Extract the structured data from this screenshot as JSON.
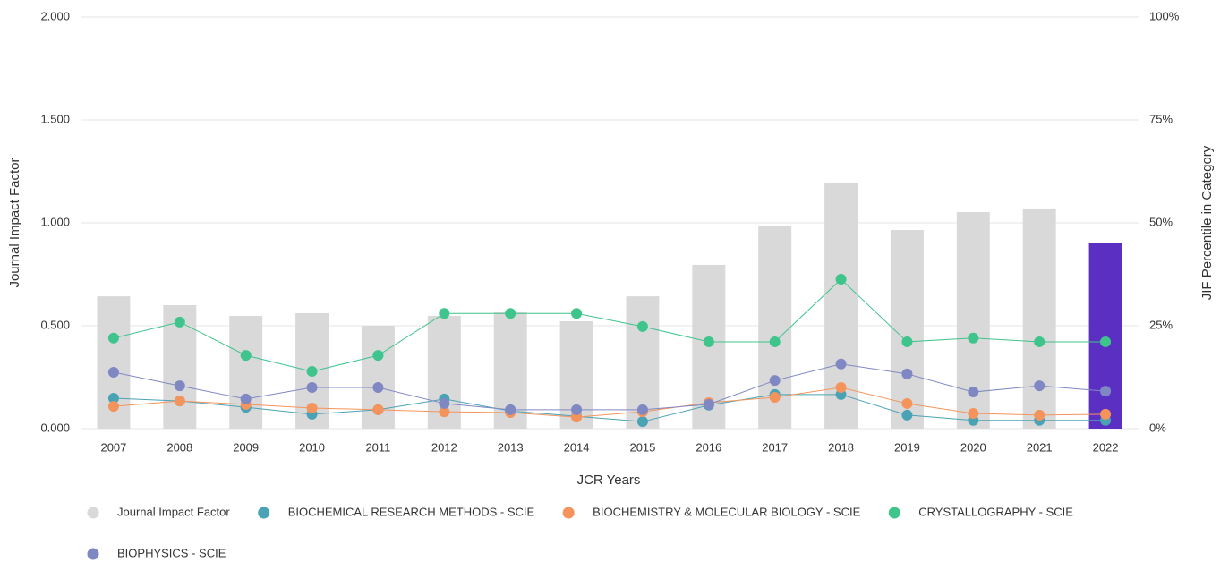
{
  "chart_data": {
    "type": "bar",
    "x_label": "JCR Years",
    "y_label": "Journal Impact Factor",
    "y2_label": "JIF Percentile in Category",
    "categories": [
      "2007",
      "2008",
      "2009",
      "2010",
      "2011",
      "2012",
      "2013",
      "2014",
      "2015",
      "2016",
      "2017",
      "2018",
      "2019",
      "2020",
      "2021",
      "2022"
    ],
    "series": [
      {
        "name": "Journal Impact Factor",
        "type": "bar",
        "color": "#d9d9d9",
        "colors": [
          "#d9d9d9",
          "#d9d9d9",
          "#d9d9d9",
          "#d9d9d9",
          "#d9d9d9",
          "#d9d9d9",
          "#d9d9d9",
          "#d9d9d9",
          "#d9d9d9",
          "#d9d9d9",
          "#d9d9d9",
          "#d9d9d9",
          "#d9d9d9",
          "#d9d9d9",
          "#d9d9d9",
          "#5b2fc2"
        ],
        "values": [
          0.643,
          0.6,
          0.548,
          0.561,
          0.5,
          0.548,
          0.565,
          0.522,
          0.643,
          0.796,
          0.987,
          1.196,
          0.965,
          1.052,
          1.07,
          0.9
        ]
      },
      {
        "name": "BIOCHEMICAL RESEARCH METHODS - SCIE",
        "type": "line",
        "axis": "y2",
        "color": "#4aa3b5",
        "values": [
          7.4,
          6.7,
          5.2,
          3.5,
          4.6,
          7.2,
          4.3,
          3.0,
          1.7,
          5.7,
          8.3,
          8.3,
          3.3,
          2.0,
          2.0,
          2.0
        ]
      },
      {
        "name": "BIOCHEMISTRY & MOLECULAR BIOLOGY - SCIE",
        "type": "line",
        "axis": "y2",
        "color": "#f4945c",
        "values": [
          5.4,
          6.7,
          5.9,
          5.0,
          4.6,
          4.1,
          3.9,
          2.8,
          4.1,
          6.3,
          7.6,
          10.0,
          6.1,
          3.7,
          3.3,
          3.5
        ]
      },
      {
        "name": "CRYSTALLOGRAPHY - SCIE",
        "type": "line",
        "axis": "y2",
        "color": "#3fc48c",
        "values": [
          22.0,
          25.9,
          17.8,
          13.9,
          17.8,
          28.0,
          28.0,
          28.0,
          24.8,
          21.1,
          21.1,
          36.3,
          21.1,
          22.0,
          21.1,
          21.1
        ]
      },
      {
        "name": "BIOPHYSICS - SCIE",
        "type": "line",
        "axis": "y2",
        "color": "#8088c4",
        "values": [
          13.7,
          10.4,
          7.2,
          10.0,
          10.0,
          6.1,
          4.6,
          4.6,
          4.6,
          5.9,
          11.7,
          15.7,
          13.3,
          8.9,
          10.4,
          9.1
        ]
      }
    ],
    "ylim": [
      0,
      2
    ],
    "yticks": [
      {
        "value": 0,
        "label": "0.000"
      },
      {
        "value": 0.5,
        "label": "0.500"
      },
      {
        "value": 1,
        "label": "1.000"
      },
      {
        "value": 1.5,
        "label": "1.500"
      },
      {
        "value": 2,
        "label": "2.000"
      }
    ],
    "y2lim": [
      0,
      100
    ],
    "y2ticks": [
      {
        "value": 0,
        "label": "0%"
      },
      {
        "value": 25,
        "label": "25%"
      },
      {
        "value": 50,
        "label": "50%"
      },
      {
        "value": 75,
        "label": "75%"
      },
      {
        "value": 100,
        "label": "100%"
      }
    ],
    "grid": true
  }
}
